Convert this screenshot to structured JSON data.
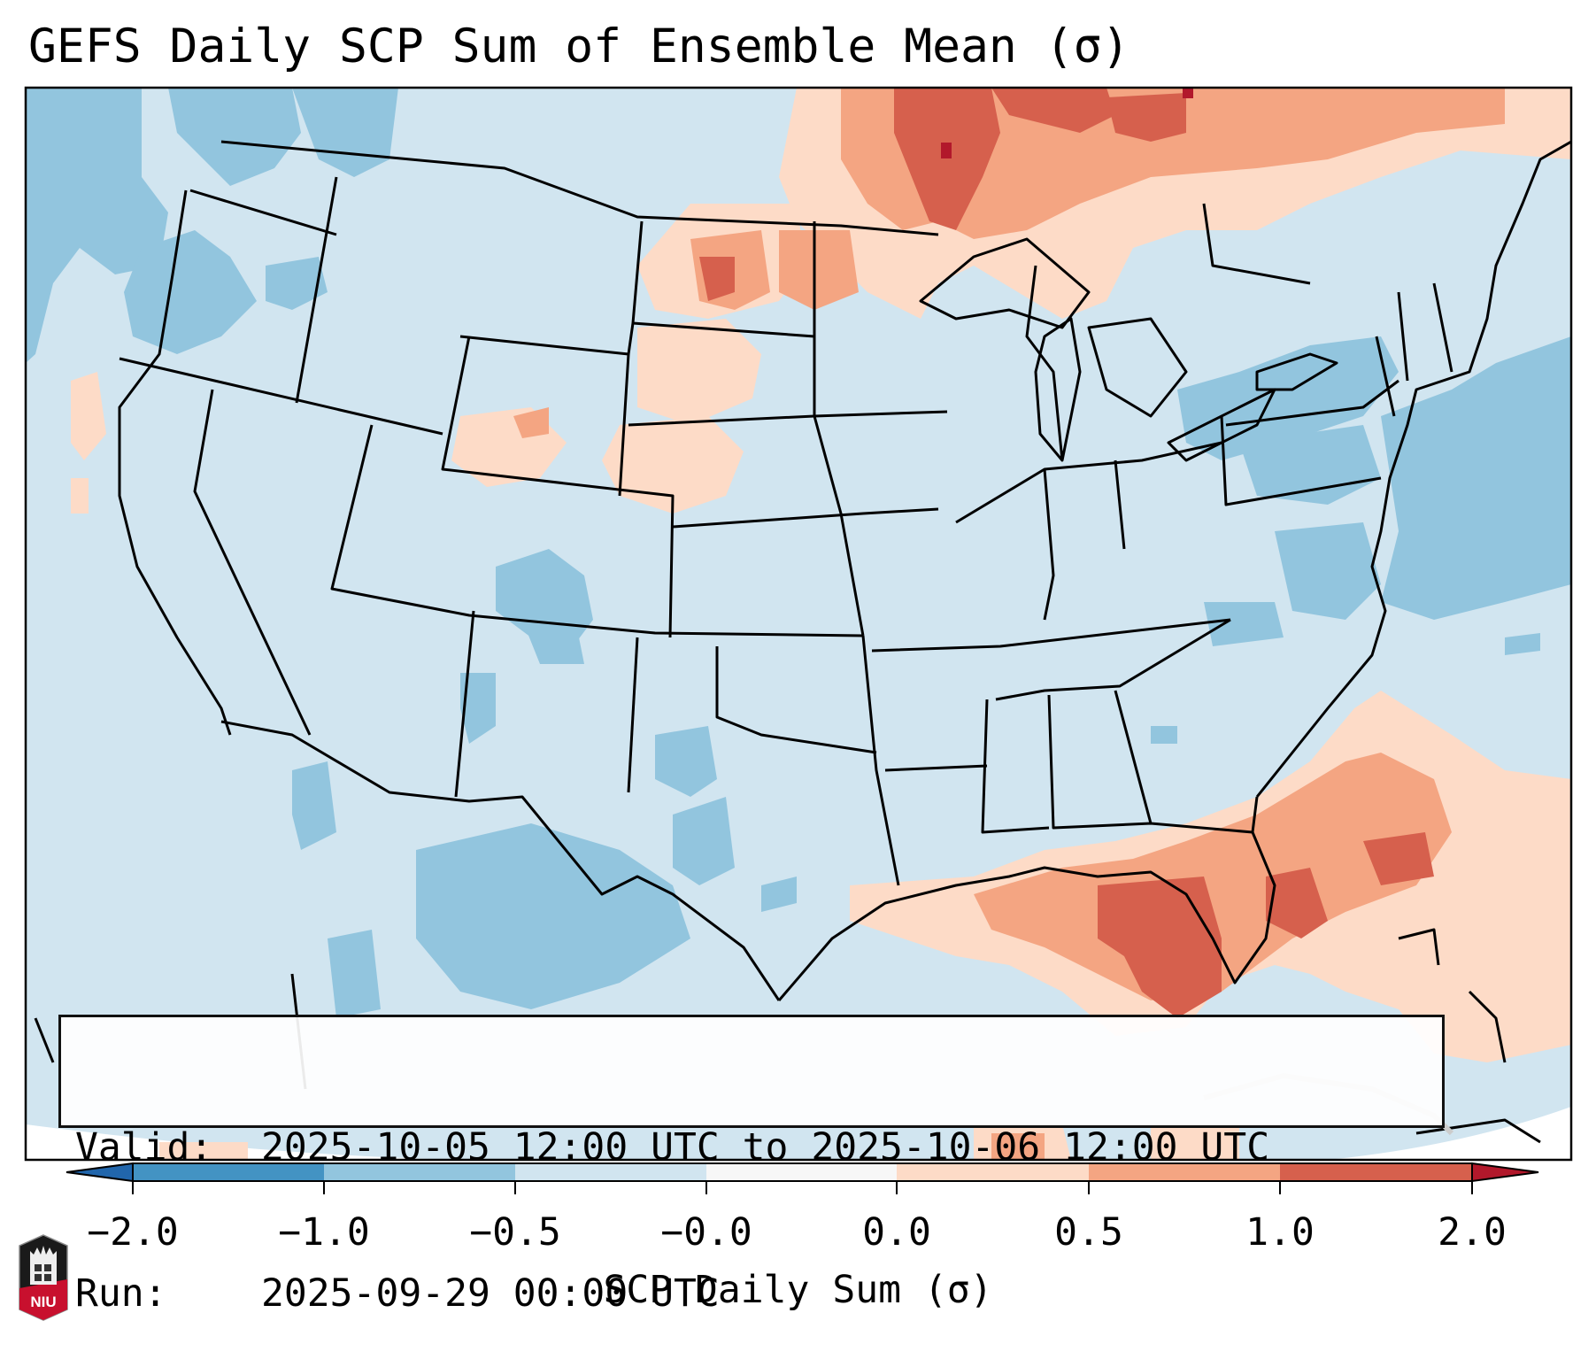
{
  "title": "GEFS Daily SCP Sum of Ensemble Mean (σ)",
  "info": {
    "valid_label": "Valid:",
    "valid_value": "2025-10-05 12:00 UTC to 2025-10-06 12:00 UTC",
    "run_label": "Run:",
    "run_value": "2025-09-29 00:00 UTC"
  },
  "colorbar": {
    "label": "SCP Daily Sum (σ)",
    "extend": "both",
    "ticks": [
      "−2.0",
      "−1.0",
      "−0.5",
      "−0.0",
      "0.0",
      "0.5",
      "1.0",
      "2.0"
    ],
    "bins": [
      {
        "range": "< -2.0",
        "color": "#2166ac"
      },
      {
        "range": "-2.0 to -1.0",
        "color": "#4393c3"
      },
      {
        "range": "-1.0 to -0.5",
        "color": "#92c5de"
      },
      {
        "range": "-0.5 to -0.0",
        "color": "#d1e5f0"
      },
      {
        "range": "-0.0 to 0.0",
        "color": "#f7f7f7"
      },
      {
        "range": "0.0 to 0.5",
        "color": "#fddbc7"
      },
      {
        "range": "0.5 to 1.0",
        "color": "#f4a582"
      },
      {
        "range": "1.0 to 2.0",
        "color": "#d6604d"
      },
      {
        "range": "> 2.0",
        "color": "#b2182b"
      }
    ]
  },
  "map": {
    "region": "Continental United States",
    "background_bin_color": "#d1e5f0",
    "features": [
      {
        "area": "Northern Plains / Upper Midwest / southern Canada",
        "level": "0.5 to 2.0 (max >2.0)"
      },
      {
        "area": "Gulf of Mexico / Florida / western Atlantic",
        "level": "0.0 to 2.0"
      },
      {
        "area": "Pacific Northwest offshore",
        "level": "-1.0 to -0.5"
      },
      {
        "area": "Texas / northern Mexico",
        "level": "-1.0 to -0.5"
      },
      {
        "area": "Mid-Atlantic / Northeast offshore",
        "level": "-1.0 to -0.5"
      }
    ]
  },
  "logo": {
    "text": "NIU"
  }
}
